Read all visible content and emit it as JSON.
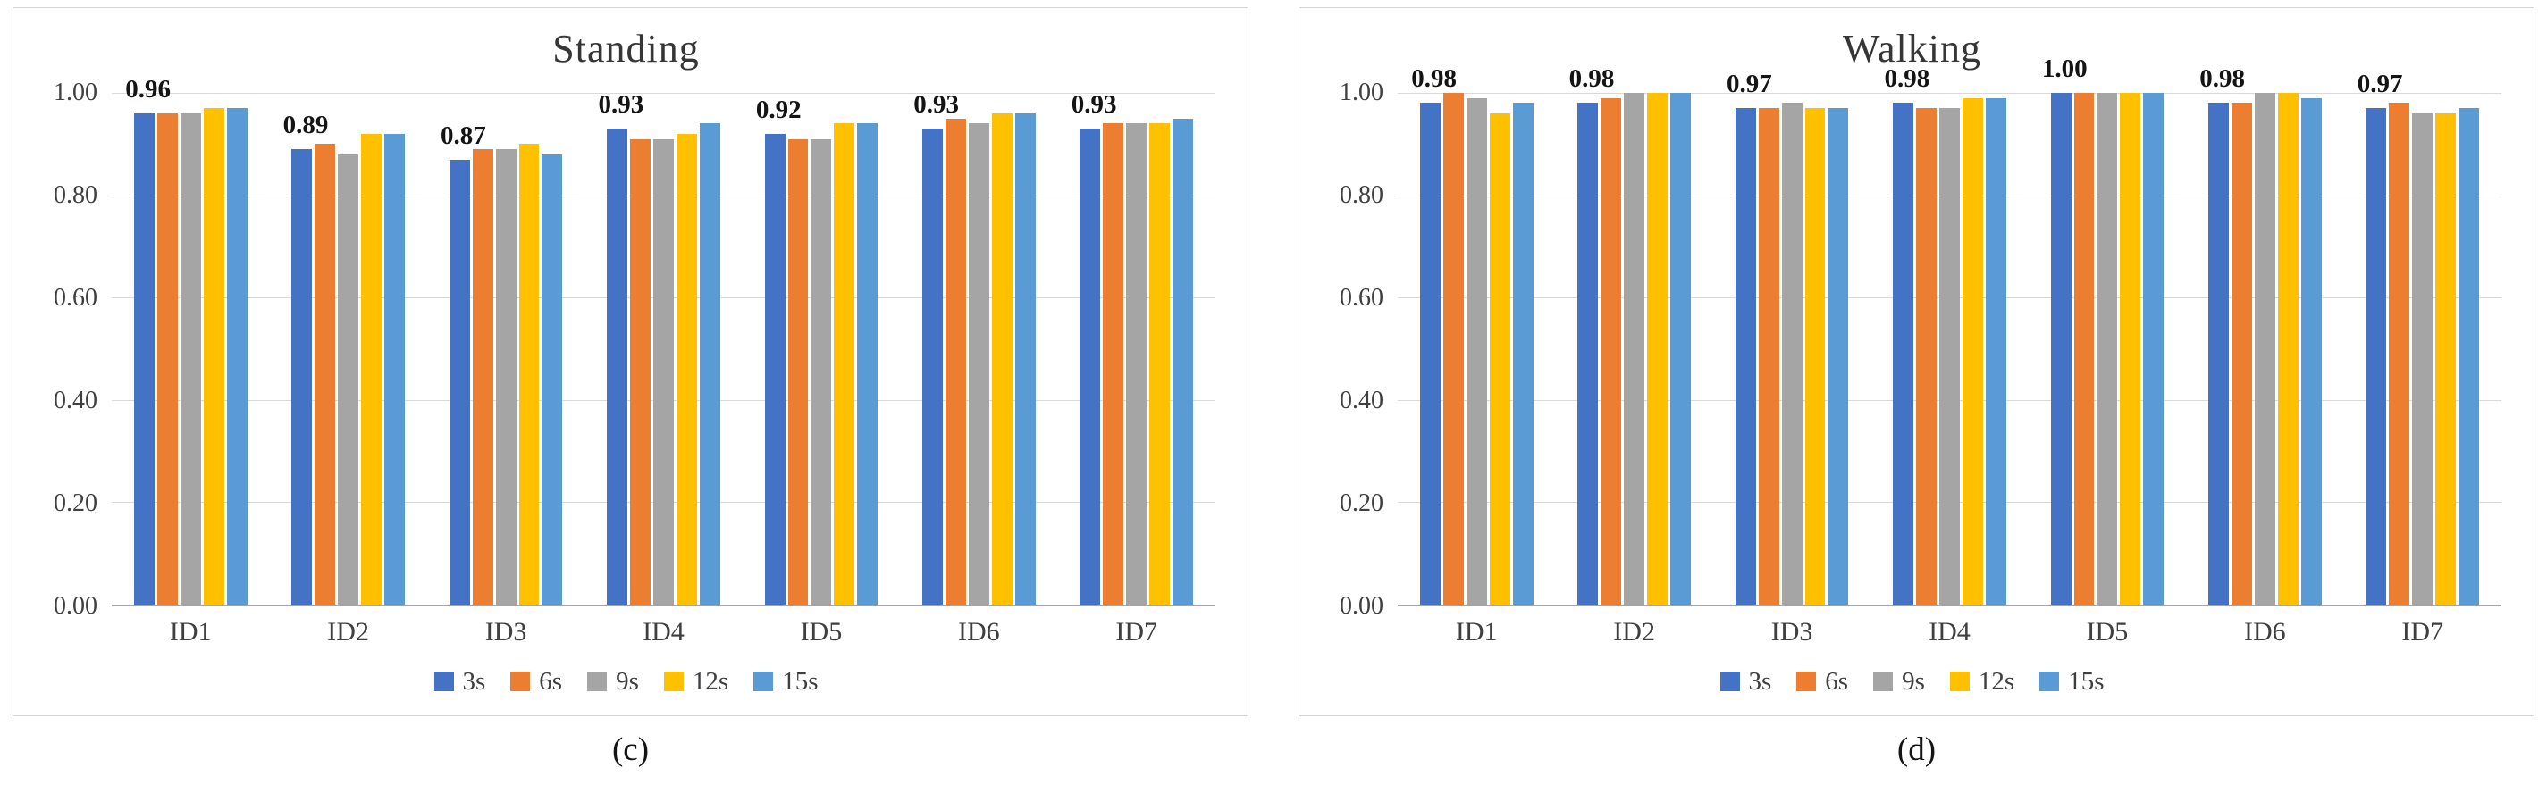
{
  "figure": {
    "panels": [
      {
        "caption": "(c)"
      },
      {
        "caption": "(d)"
      }
    ]
  },
  "chart_data": [
    {
      "type": "bar",
      "title": "Standing",
      "categories": [
        "ID1",
        "ID2",
        "ID3",
        "ID4",
        "ID5",
        "ID6",
        "ID7"
      ],
      "series": [
        {
          "name": "3s",
          "color": "#4472C4",
          "values": [
            0.96,
            0.89,
            0.87,
            0.93,
            0.92,
            0.93,
            0.93
          ]
        },
        {
          "name": "6s",
          "color": "#ED7D31",
          "values": [
            0.96,
            0.9,
            0.89,
            0.91,
            0.91,
            0.95,
            0.94
          ]
        },
        {
          "name": "9s",
          "color": "#A5A5A5",
          "values": [
            0.96,
            0.88,
            0.89,
            0.91,
            0.91,
            0.94,
            0.94
          ]
        },
        {
          "name": "12s",
          "color": "#FFC000",
          "values": [
            0.97,
            0.92,
            0.9,
            0.92,
            0.94,
            0.96,
            0.94
          ]
        },
        {
          "name": "15s",
          "color": "#5B9BD5",
          "values": [
            0.97,
            0.92,
            0.88,
            0.94,
            0.94,
            0.96,
            0.95
          ]
        }
      ],
      "group_labels": [
        "0.96",
        "0.89",
        "0.87",
        "0.93",
        "0.92",
        "0.93",
        "0.93"
      ],
      "ylim": [
        0,
        1.0
      ],
      "yticks": [
        {
          "value": 0.0,
          "label": "0.00"
        },
        {
          "value": 0.2,
          "label": "0.20"
        },
        {
          "value": 0.4,
          "label": "0.40"
        },
        {
          "value": 0.6,
          "label": "0.60"
        },
        {
          "value": 0.8,
          "label": "0.80"
        },
        {
          "value": 1.0,
          "label": "1.00"
        }
      ],
      "grid": true,
      "legend_position": "bottom"
    },
    {
      "type": "bar",
      "title": "Walking",
      "categories": [
        "ID1",
        "ID2",
        "ID3",
        "ID4",
        "ID5",
        "ID6",
        "ID7"
      ],
      "series": [
        {
          "name": "3s",
          "color": "#4472C4",
          "values": [
            0.98,
            0.98,
            0.97,
            0.98,
            1.0,
            0.98,
            0.97
          ]
        },
        {
          "name": "6s",
          "color": "#ED7D31",
          "values": [
            1.0,
            0.99,
            0.97,
            0.97,
            1.0,
            0.98,
            0.98
          ]
        },
        {
          "name": "9s",
          "color": "#A5A5A5",
          "values": [
            0.99,
            1.0,
            0.98,
            0.97,
            1.0,
            1.0,
            0.96
          ]
        },
        {
          "name": "12s",
          "color": "#FFC000",
          "values": [
            0.96,
            1.0,
            0.97,
            0.99,
            1.0,
            1.0,
            0.96
          ]
        },
        {
          "name": "15s",
          "color": "#5B9BD5",
          "values": [
            0.98,
            1.0,
            0.97,
            0.99,
            1.0,
            0.99,
            0.97
          ]
        }
      ],
      "group_labels": [
        "0.98",
        "0.98",
        "0.97",
        "0.98",
        "1.00",
        "0.98",
        "0.97"
      ],
      "ylim": [
        0,
        1.0
      ],
      "yticks": [
        {
          "value": 0.0,
          "label": "0.00"
        },
        {
          "value": 0.2,
          "label": "0.20"
        },
        {
          "value": 0.4,
          "label": "0.40"
        },
        {
          "value": 0.6,
          "label": "0.60"
        },
        {
          "value": 0.8,
          "label": "0.80"
        },
        {
          "value": 1.0,
          "label": "1.00"
        }
      ],
      "grid": true,
      "legend_position": "bottom"
    }
  ]
}
